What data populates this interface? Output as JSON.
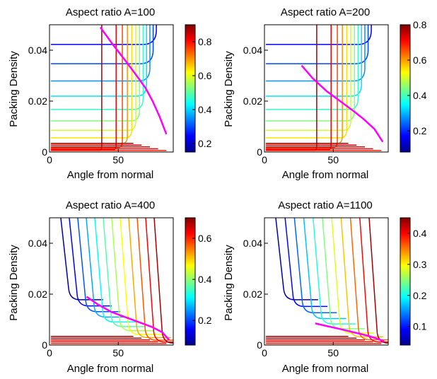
{
  "figure": {
    "panels": [
      {
        "title": "Aspect ratio A=100",
        "xlabel": "Angle from normal",
        "ylabel": "Packing Density"
      },
      {
        "title": "Aspect ratio A=200",
        "xlabel": "Angle from normal",
        "ylabel": "Packing Density"
      },
      {
        "title": "Aspect ratio A=400",
        "xlabel": "Angle from normal",
        "ylabel": "Packing Density"
      },
      {
        "title": "Aspect ratio A=1100",
        "xlabel": "Angle from normal",
        "ylabel": "Packing Density"
      }
    ]
  },
  "chart_data": [
    {
      "type": "contour",
      "title": "Aspect ratio A=100",
      "xlabel": "Angle from normal",
      "ylabel": "Packing Density",
      "xlim": [
        0,
        90
      ],
      "ylim": [
        0,
        0.05
      ],
      "xticks": [
        0,
        50
      ],
      "yticks": [
        0,
        0.02,
        0.04
      ],
      "colorbar": {
        "colormap": "jet",
        "range": [
          0.15,
          0.9
        ],
        "ticks": [
          0.2,
          0.4,
          0.6,
          0.8
        ]
      },
      "contour_family": "L",
      "contour_levels": 13,
      "magenta_curve": {
        "x": [
          37,
          45,
          55,
          62,
          70,
          75,
          80,
          85
        ],
        "y": [
          0.049,
          0.043,
          0.036,
          0.031,
          0.025,
          0.02,
          0.014,
          0.007
        ]
      }
    },
    {
      "type": "contour",
      "title": "Aspect ratio A=200",
      "xlabel": "Angle from normal",
      "ylabel": "Packing Density",
      "xlim": [
        0,
        90
      ],
      "ylim": [
        0,
        0.05
      ],
      "xticks": [
        0,
        50
      ],
      "yticks": [
        0,
        0.02,
        0.04
      ],
      "colorbar": {
        "colormap": "jet",
        "range": [
          0.08,
          0.8
        ],
        "ticks": [
          0.2,
          0.4,
          0.6,
          0.8
        ]
      },
      "contour_family": "L",
      "contour_levels": 13,
      "magenta_curve": {
        "x": [
          27,
          35,
          45,
          55,
          65,
          72,
          80,
          86
        ],
        "y": [
          0.034,
          0.029,
          0.024,
          0.02,
          0.016,
          0.013,
          0.009,
          0.004
        ]
      }
    },
    {
      "type": "contour",
      "title": "Aspect ratio A=400",
      "xlabel": "Angle from normal",
      "ylabel": "Packing Density",
      "xlim": [
        0,
        90
      ],
      "ylim": [
        0,
        0.05
      ],
      "xticks": [
        0,
        50
      ],
      "yticks": [
        0,
        0.02,
        0.04
      ],
      "colorbar": {
        "colormap": "jet",
        "range": [
          0.08,
          0.7
        ],
        "ticks": [
          0.2,
          0.4,
          0.6
        ]
      },
      "contour_family": "V",
      "contour_levels": 12,
      "magenta_curve": {
        "x": [
          27,
          35,
          45,
          55,
          65,
          75,
          82,
          87
        ],
        "y": [
          0.019,
          0.016,
          0.013,
          0.011,
          0.009,
          0.007,
          0.005,
          0.002
        ]
      }
    },
    {
      "type": "contour",
      "title": "Aspect ratio A=1100",
      "xlabel": "Angle from normal",
      "ylabel": "Packing Density",
      "xlim": [
        0,
        90
      ],
      "ylim": [
        0,
        0.05
      ],
      "xticks": [
        0,
        50
      ],
      "yticks": [
        0,
        0.02,
        0.04
      ],
      "colorbar": {
        "colormap": "jet",
        "range": [
          0.04,
          0.45
        ],
        "ticks": [
          0.1,
          0.2,
          0.3,
          0.4
        ]
      },
      "contour_family": "V",
      "contour_levels": 11,
      "magenta_curve": {
        "x": [
          37,
          45,
          55,
          65,
          75,
          82,
          87
        ],
        "y": [
          0.0085,
          0.0075,
          0.0063,
          0.005,
          0.0037,
          0.0025,
          0.0014
        ]
      }
    }
  ]
}
